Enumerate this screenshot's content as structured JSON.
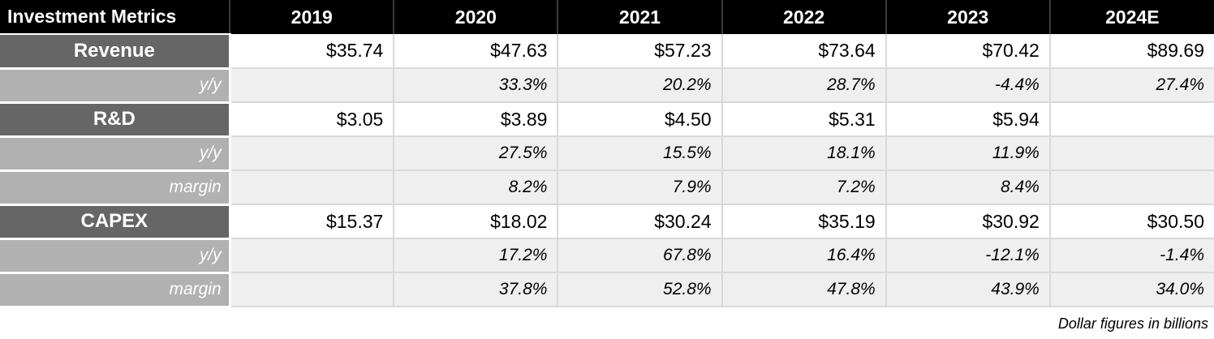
{
  "table": {
    "header": [
      "Investment Metrics",
      "2019",
      "2020",
      "2021",
      "2022",
      "2023",
      "2024E"
    ],
    "rows": [
      {
        "type": "metric",
        "label": "Revenue",
        "values": [
          "$35.74",
          "$47.63",
          "$57.23",
          "$73.64",
          "$70.42",
          "$89.69"
        ]
      },
      {
        "type": "sub",
        "label": "y/y",
        "values": [
          "",
          "33.3%",
          "20.2%",
          "28.7%",
          "-4.4%",
          "27.4%"
        ]
      },
      {
        "type": "metric",
        "label": "R&D",
        "values": [
          "$3.05",
          "$3.89",
          "$4.50",
          "$5.31",
          "$5.94",
          ""
        ]
      },
      {
        "type": "sub",
        "label": "y/y",
        "values": [
          "",
          "27.5%",
          "15.5%",
          "18.1%",
          "11.9%",
          ""
        ]
      },
      {
        "type": "sub",
        "label": "margin",
        "values": [
          "",
          "8.2%",
          "7.9%",
          "7.2%",
          "8.4%",
          ""
        ]
      },
      {
        "type": "metric",
        "label": "CAPEX",
        "values": [
          "$15.37",
          "$18.02",
          "$30.24",
          "$35.19",
          "$30.92",
          "$30.50"
        ]
      },
      {
        "type": "sub",
        "label": "y/y",
        "values": [
          "",
          "17.2%",
          "67.8%",
          "16.4%",
          "-12.1%",
          "-1.4%"
        ]
      },
      {
        "type": "sub",
        "label": "margin",
        "values": [
          "",
          "37.8%",
          "52.8%",
          "47.8%",
          "43.9%",
          "34.0%"
        ]
      }
    ],
    "footnote": "Dollar figures in billions"
  },
  "chart_data": {
    "type": "table",
    "title": "Investment Metrics",
    "columns": [
      "Investment Metrics",
      "2019",
      "2020",
      "2021",
      "2022",
      "2023",
      "2024E"
    ],
    "footnote": "Dollar figures in billions",
    "series": [
      {
        "name": "Revenue",
        "values_usd_billions": [
          35.74,
          47.63,
          57.23,
          73.64,
          70.42,
          89.69
        ],
        "yoy_pct": [
          null,
          33.3,
          20.2,
          28.7,
          -4.4,
          27.4
        ]
      },
      {
        "name": "R&D",
        "values_usd_billions": [
          3.05,
          3.89,
          4.5,
          5.31,
          5.94,
          null
        ],
        "yoy_pct": [
          null,
          27.5,
          15.5,
          18.1,
          11.9,
          null
        ],
        "margin_pct": [
          null,
          8.2,
          7.9,
          7.2,
          8.4,
          null
        ]
      },
      {
        "name": "CAPEX",
        "values_usd_billions": [
          15.37,
          18.02,
          30.24,
          35.19,
          30.92,
          30.5
        ],
        "yoy_pct": [
          null,
          17.2,
          67.8,
          16.4,
          -12.1,
          -1.4
        ],
        "margin_pct": [
          null,
          37.8,
          52.8,
          47.8,
          43.9,
          34.0
        ]
      }
    ]
  },
  "colors": {
    "header_bg": "#000000",
    "header_text": "#ffffff",
    "metric_label_bg": "#666666",
    "sub_label_bg": "#b1b1b1",
    "sub_row_bg": "#efefef",
    "gridline": "#d9d9d9"
  }
}
